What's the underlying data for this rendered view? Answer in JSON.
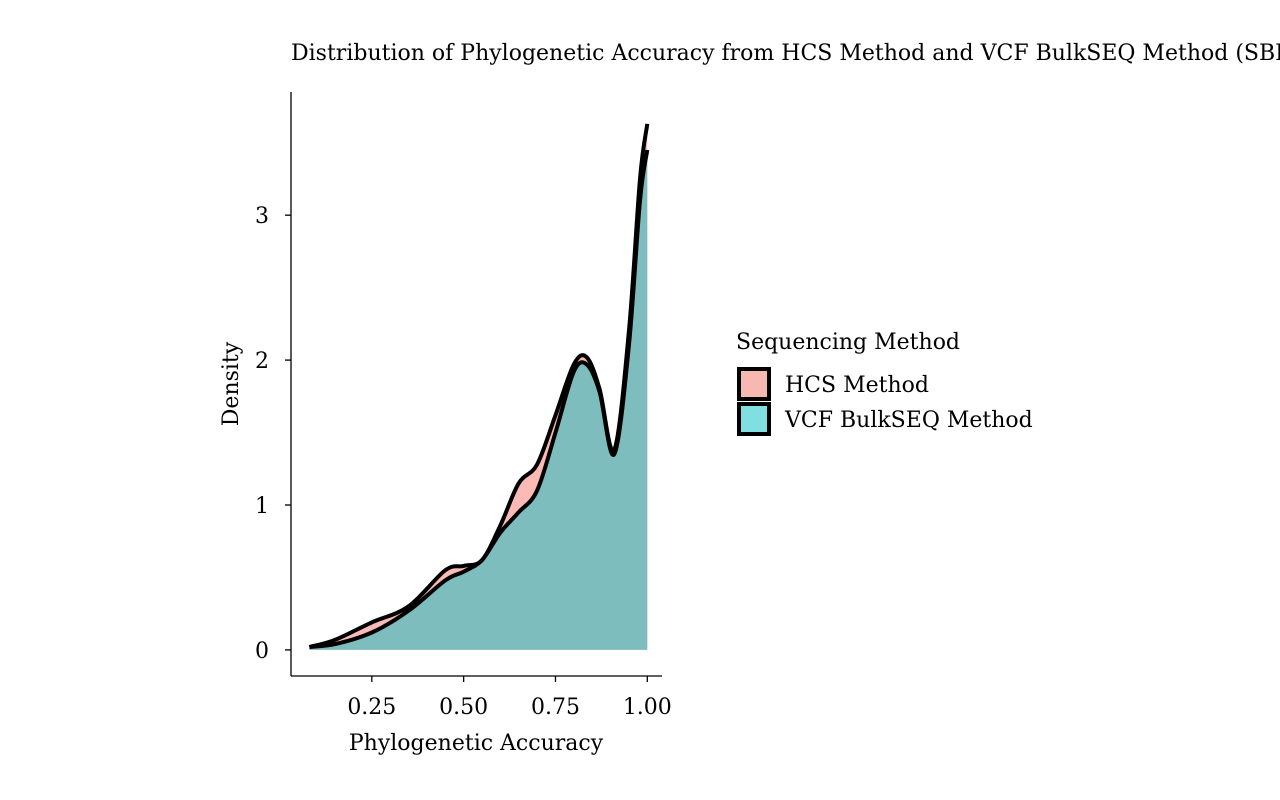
{
  "chart_data": {
    "type": "area",
    "title": "Distribution of Phylogenetic Accuracy from HCS Method and VCF BulkSEQ Method (SBR-",
    "xlabel": "Phylogenetic Accuracy",
    "ylabel": "Density",
    "xlim": [
      0.03,
      1.04
    ],
    "ylim": [
      -0.18,
      3.85
    ],
    "xticks": [
      0.25,
      0.5,
      0.75,
      1.0
    ],
    "xtick_labels": [
      "0.25",
      "0.50",
      "0.75",
      "1.00"
    ],
    "yticks": [
      0,
      1,
      2,
      3
    ],
    "ytick_labels": [
      "0",
      "1",
      "2",
      "3"
    ],
    "legend": {
      "title": "Sequencing Method",
      "placement": "right"
    },
    "grid": false,
    "series": [
      {
        "name": "HCS Method",
        "fill": "#F8766D",
        "x": [
          0.08,
          0.15,
          0.25,
          0.35,
          0.45,
          0.5,
          0.55,
          0.6,
          0.65,
          0.7,
          0.75,
          0.8,
          0.835,
          0.87,
          0.91,
          0.95,
          0.98,
          1.0
        ],
        "y": [
          0.02,
          0.07,
          0.19,
          0.3,
          0.55,
          0.58,
          0.62,
          0.86,
          1.15,
          1.28,
          1.62,
          1.97,
          2.02,
          1.8,
          1.38,
          2.2,
          3.25,
          3.63
        ]
      },
      {
        "name": "VCF BulkSEQ Method",
        "fill": "#00BFC4",
        "x": [
          0.08,
          0.15,
          0.25,
          0.35,
          0.45,
          0.5,
          0.55,
          0.6,
          0.65,
          0.7,
          0.75,
          0.8,
          0.835,
          0.87,
          0.91,
          0.95,
          0.98,
          1.0
        ],
        "y": [
          0.02,
          0.04,
          0.12,
          0.27,
          0.48,
          0.54,
          0.62,
          0.81,
          0.95,
          1.1,
          1.5,
          1.92,
          1.97,
          1.78,
          1.35,
          2.1,
          3.1,
          3.45
        ]
      }
    ]
  }
}
